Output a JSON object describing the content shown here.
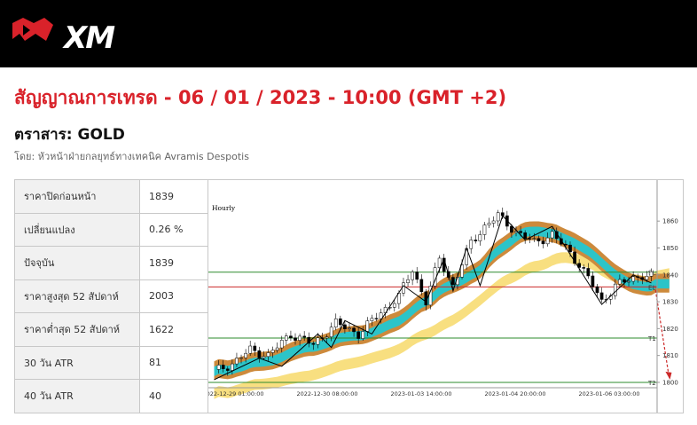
{
  "header": {
    "logo_text": "XM",
    "colors": {
      "background": "#000000",
      "logo_mark": "#d9222a",
      "logo_text": "#ffffff"
    }
  },
  "article": {
    "title": "สัญญาณการเทรด - 06 / 01 / 2023 - 10:00 (GMT +2)",
    "instrument": "ตราสาร: GOLD",
    "author": "โดย: หัวหน้าฝ่ายกลยุทธ์ทางเทคนิค Avramis Despotis",
    "title_color": "#d9222a"
  },
  "stats": [
    {
      "label": "ราคาปิดก่อนหน้า",
      "value": "1839"
    },
    {
      "label": "เปลี่ยนแปลง",
      "value": "0.26 %"
    },
    {
      "label": "ปัจจุบัน",
      "value": "1839"
    },
    {
      "label": "ราคาสูงสุด 52 สัปดาห์",
      "value": "2003"
    },
    {
      "label": "ราคาต่ำสุด 52 สัปดาห์",
      "value": "1622"
    },
    {
      "label": "30 วัน ATR",
      "value": "81"
    },
    {
      "label": "40 วัน ATR",
      "value": "40"
    }
  ],
  "chart_data": {
    "type": "candlestick",
    "title": "Hourly",
    "xlabel": "",
    "ylabel": "",
    "x_tick_labels": [
      "2022-12-29 01:00:00",
      "2022-12-30 08:00:00",
      "2023-01-03 14:00:00",
      "2023-01-04 20:00:00",
      "2023-01-06 03:00:00"
    ],
    "y_ticks": [
      1800,
      1810,
      1820,
      1830,
      1840,
      1850,
      1860
    ],
    "ylim": [
      1798,
      1866
    ],
    "grid": false,
    "levels": [
      {
        "name": "SL",
        "label": "SL",
        "value": 1841,
        "color": "#2e8b2e"
      },
      {
        "name": "EL",
        "label": "EL",
        "value": 1835.5,
        "color": "#cc2a2a"
      },
      {
        "name": "T1",
        "label": "T1",
        "value": 1816.5,
        "color": "#2e8b2e"
      },
      {
        "name": "T2",
        "label": "T2",
        "value": 1800,
        "color": "#2e8b2e"
      }
    ],
    "band_colors": {
      "outer": "#cd8a3c",
      "inner": "#2cc4c8",
      "lower": "#f8df80"
    },
    "forecast_arrow": {
      "from": 1836,
      "to": 1802,
      "color": "#cc2a2a"
    }
  }
}
